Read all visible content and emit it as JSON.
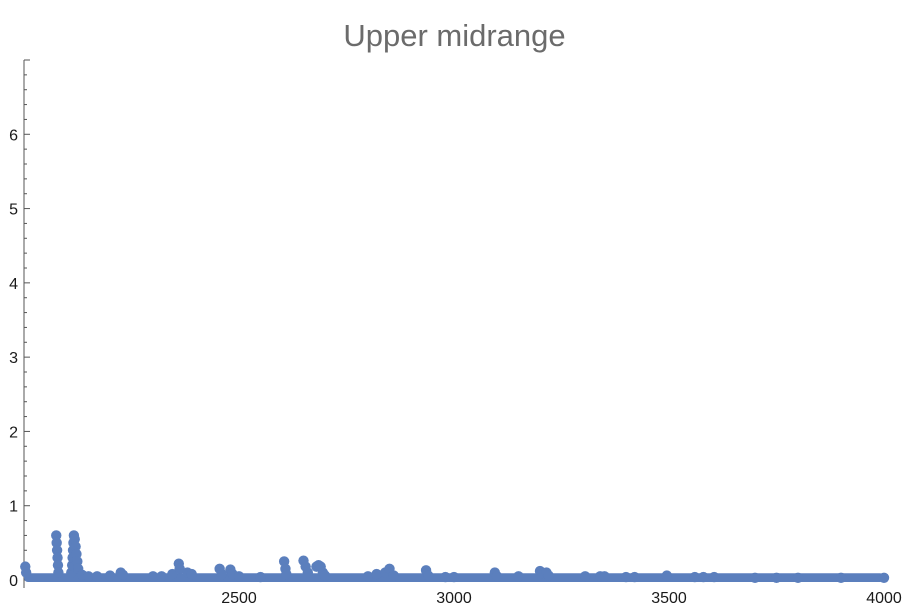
{
  "chart_data": {
    "type": "scatter",
    "title": "Upper midrange",
    "xlabel": "",
    "ylabel": "",
    "xlim": [
      2000,
      4000
    ],
    "ylim": [
      0,
      7
    ],
    "x_ticks": [
      2500,
      3000,
      3500,
      4000
    ],
    "y_ticks": [
      0,
      1,
      2,
      3,
      4,
      5,
      6
    ],
    "grid": false,
    "series_color": "#5b7fbd",
    "baseline": {
      "x_range": [
        2000,
        4000
      ],
      "y": 0.02,
      "note_value_band": [
        0,
        0.05
      ]
    },
    "series": [
      {
        "points": [
          [
            2003,
            0.18
          ],
          [
            2005,
            0.1
          ],
          [
            2075,
            0.6
          ],
          [
            2076,
            0.5
          ],
          [
            2077,
            0.4
          ],
          [
            2078,
            0.3
          ],
          [
            2079,
            0.2
          ],
          [
            2080,
            0.1
          ],
          [
            2110,
            0.1
          ],
          [
            2112,
            0.2
          ],
          [
            2113,
            0.3
          ],
          [
            2114,
            0.4
          ],
          [
            2115,
            0.5
          ],
          [
            2116,
            0.6
          ],
          [
            2118,
            0.55
          ],
          [
            2120,
            0.45
          ],
          [
            2122,
            0.35
          ],
          [
            2124,
            0.25
          ],
          [
            2126,
            0.15
          ],
          [
            2135,
            0.07
          ],
          [
            2150,
            0.05
          ],
          [
            2170,
            0.05
          ],
          [
            2200,
            0.06
          ],
          [
            2225,
            0.1
          ],
          [
            2230,
            0.07
          ],
          [
            2300,
            0.05
          ],
          [
            2320,
            0.05
          ],
          [
            2345,
            0.08
          ],
          [
            2360,
            0.22
          ],
          [
            2362,
            0.15
          ],
          [
            2380,
            0.1
          ],
          [
            2390,
            0.08
          ],
          [
            2455,
            0.15
          ],
          [
            2460,
            0.08
          ],
          [
            2480,
            0.14
          ],
          [
            2485,
            0.08
          ],
          [
            2500,
            0.05
          ],
          [
            2550,
            0.04
          ],
          [
            2605,
            0.25
          ],
          [
            2608,
            0.15
          ],
          [
            2610,
            0.08
          ],
          [
            2650,
            0.26
          ],
          [
            2655,
            0.18
          ],
          [
            2660,
            0.1
          ],
          [
            2680,
            0.18
          ],
          [
            2685,
            0.2
          ],
          [
            2690,
            0.18
          ],
          [
            2695,
            0.1
          ],
          [
            2700,
            0.06
          ],
          [
            2800,
            0.05
          ],
          [
            2820,
            0.08
          ],
          [
            2840,
            0.1
          ],
          [
            2850,
            0.15
          ],
          [
            2860,
            0.06
          ],
          [
            2935,
            0.13
          ],
          [
            2940,
            0.06
          ],
          [
            2980,
            0.04
          ],
          [
            3000,
            0.04
          ],
          [
            3095,
            0.1
          ],
          [
            3100,
            0.05
          ],
          [
            3150,
            0.05
          ],
          [
            3200,
            0.12
          ],
          [
            3205,
            0.09
          ],
          [
            3215,
            0.1
          ],
          [
            3220,
            0.06
          ],
          [
            3305,
            0.05
          ],
          [
            3340,
            0.05
          ],
          [
            3350,
            0.05
          ],
          [
            3400,
            0.04
          ],
          [
            3420,
            0.04
          ],
          [
            3495,
            0.06
          ],
          [
            3560,
            0.04
          ],
          [
            3580,
            0.04
          ],
          [
            3605,
            0.04
          ],
          [
            3700,
            0.03
          ],
          [
            3750,
            0.03
          ],
          [
            3800,
            0.03
          ],
          [
            3900,
            0.03
          ],
          [
            4000,
            0.03
          ]
        ]
      }
    ]
  }
}
